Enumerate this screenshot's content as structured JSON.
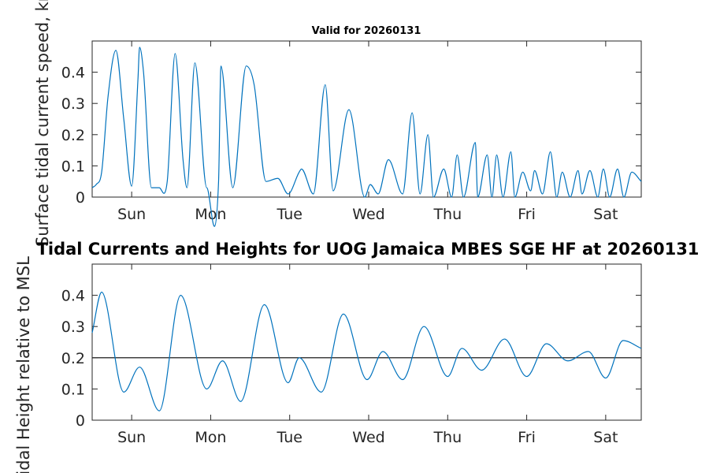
{
  "top_title": "Valid for 20260131",
  "main_title": "Tidal Currents and Heights for UOG Jamaica MBES SGE HF at 20260131",
  "colors": {
    "series": "#0072BD",
    "reference": "#000000",
    "axes": "#262626"
  },
  "chart_data": [
    {
      "type": "line",
      "ylabel": "Surface tidal current speed, knots",
      "xlim": [
        0,
        6.95
      ],
      "ylim": [
        0,
        0.5
      ],
      "grid": false,
      "xticks": [
        0.5,
        1.5,
        2.5,
        3.5,
        4.5,
        5.5,
        6.5
      ],
      "xtick_labels": [
        "Sun",
        "Mon",
        "Tue",
        "Wed",
        "Thu",
        "Fri",
        "Sat"
      ],
      "yticks": [
        0,
        0.1,
        0.2,
        0.3,
        0.4
      ],
      "ytick_labels": [
        "0",
        "0.1",
        "0.2",
        "0.3",
        "0.4"
      ],
      "series": [
        {
          "x": [
            0,
            0.05,
            0.12,
            0.2,
            0.3,
            0.4,
            0.5,
            0.58,
            0.6,
            0.65,
            0.75,
            0.85,
            0.95,
            1.05,
            1.15,
            1.2,
            1.3,
            1.45,
            1.6,
            1.63,
            1.78,
            1.95,
            2.05,
            2.2,
            2.35,
            2.48,
            2.62,
            2.65,
            2.8,
            2.95,
            3.05,
            3.25,
            3.45,
            3.52,
            3.62,
            3.75,
            3.93,
            4.05,
            4.15,
            4.25,
            4.32,
            4.45,
            4.55,
            4.62,
            4.7,
            4.85,
            4.88,
            5.0,
            5.06,
            5.12,
            5.2,
            5.3,
            5.35,
            5.45,
            5.55,
            5.6,
            5.7,
            5.8,
            5.88,
            5.95,
            6.05,
            6.15,
            6.2,
            6.3,
            6.4,
            6.47,
            6.55,
            6.65,
            6.73,
            6.83,
            6.95
          ],
          "y": [
            0.03,
            0.04,
            0.08,
            0.32,
            0.47,
            0.25,
            0.035,
            0.38,
            0.48,
            0.4,
            0.03,
            0.03,
            0.05,
            0.46,
            0.12,
            0.03,
            0.43,
            0.03,
            0.05,
            0.42,
            0.03,
            0.42,
            0.36,
            0.05,
            0.06,
            0.01,
            0.08,
            0.09,
            0.01,
            0.36,
            0.02,
            0.28,
            0.0,
            0.04,
            0.01,
            0.12,
            0.01,
            0.27,
            0.01,
            0.2,
            0.0,
            0.09,
            0.0,
            0.135,
            0.0,
            0.175,
            0.0,
            0.135,
            0.0,
            0.135,
            0.0,
            0.145,
            0.0,
            0.08,
            0.02,
            0.085,
            0.01,
            0.145,
            0.0,
            0.08,
            0.0,
            0.085,
            0.01,
            0.085,
            0.0,
            0.09,
            0.0,
            0.09,
            0.0,
            0.08,
            0.05
          ]
        }
      ]
    },
    {
      "type": "line",
      "ylabel": "Tidal Height relative to MSL",
      "xlim": [
        0,
        6.95
      ],
      "ylim": [
        0,
        0.5
      ],
      "grid": false,
      "xticks": [
        0.5,
        1.5,
        2.5,
        3.5,
        4.5,
        5.5,
        6.5
      ],
      "xtick_labels": [
        "Sun",
        "Mon",
        "Tue",
        "Wed",
        "Thu",
        "Fri",
        "Sat"
      ],
      "yticks": [
        0,
        0.1,
        0.2,
        0.3,
        0.4
      ],
      "ytick_labels": [
        "0",
        "0.1",
        "0.2",
        "0.3",
        "0.4"
      ],
      "reference_line": 0.2,
      "series": [
        {
          "x": [
            0,
            0.12,
            0.4,
            0.6,
            0.85,
            1.12,
            1.45,
            1.65,
            1.88,
            2.18,
            2.48,
            2.62,
            2.9,
            3.18,
            3.48,
            3.68,
            3.93,
            4.2,
            4.5,
            4.68,
            4.93,
            5.22,
            5.5,
            5.75,
            6.02,
            6.28,
            6.5,
            6.72,
            6.95
          ],
          "y": [
            0.28,
            0.41,
            0.09,
            0.17,
            0.03,
            0.4,
            0.1,
            0.19,
            0.06,
            0.37,
            0.12,
            0.2,
            0.09,
            0.34,
            0.13,
            0.22,
            0.13,
            0.3,
            0.14,
            0.23,
            0.16,
            0.26,
            0.14,
            0.245,
            0.19,
            0.22,
            0.135,
            0.255,
            0.23
          ]
        }
      ]
    }
  ]
}
